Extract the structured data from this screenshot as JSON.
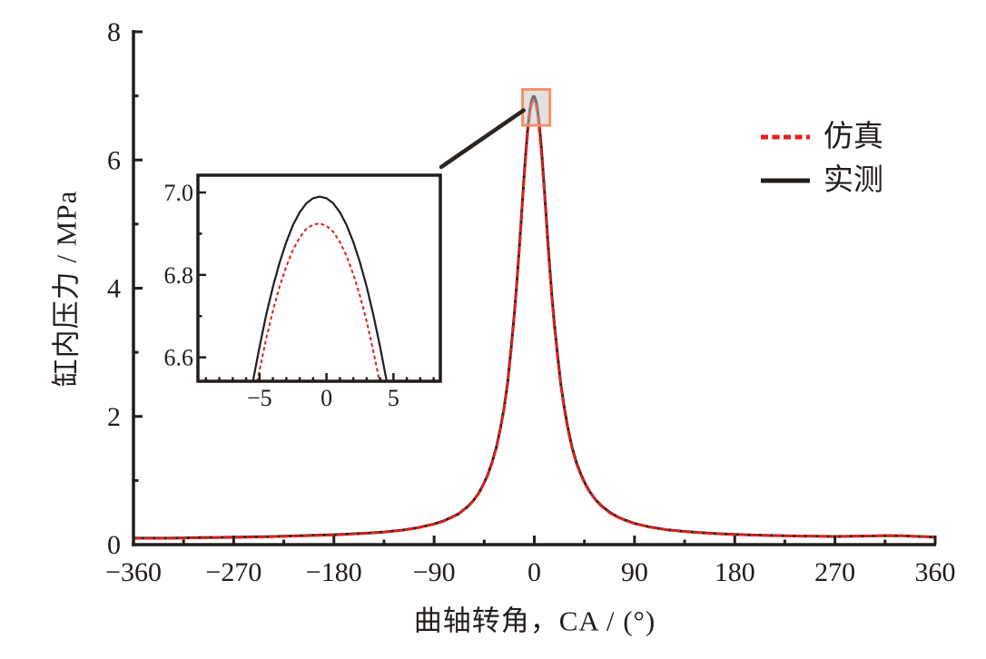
{
  "colors": {
    "axis": "#221c1a",
    "measured": "#221c1a",
    "simulation": "#e2211a",
    "highlight_stroke": "#f0906c",
    "highlight_fill": "rgba(198,196,192,0.5)",
    "connector": "#2b2522",
    "background": "#ffffff"
  },
  "legend": {
    "items": [
      {
        "label": "仿真",
        "color": "#e2211a",
        "dash": "8 4.5"
      },
      {
        "label": "实测",
        "color": "#221c1a",
        "dash": null
      }
    ]
  },
  "chart_data": {
    "type": "line",
    "title": "",
    "main": {
      "xlabel": "曲轴转角，CA / (°)",
      "ylabel": "缸内压力 / MPa",
      "xlim": [
        -360,
        360
      ],
      "ylim": [
        0,
        8
      ],
      "grid": false,
      "xticks": [
        {
          "v": -360,
          "label": "−360"
        },
        {
          "v": -270,
          "label": "−270"
        },
        {
          "v": -180,
          "label": "−180"
        },
        {
          "v": -90,
          "label": "−90"
        },
        {
          "v": 0,
          "label": "0"
        },
        {
          "v": 90,
          "label": "90"
        },
        {
          "v": 180,
          "label": "180"
        },
        {
          "v": 270,
          "label": "270"
        },
        {
          "v": 360,
          "label": "360"
        }
      ],
      "xminors": [
        -315,
        -225,
        -135,
        -45,
        45,
        135,
        225,
        315
      ],
      "yticks": [
        {
          "v": 0,
          "label": "0"
        },
        {
          "v": 2,
          "label": "2"
        },
        {
          "v": 4,
          "label": "4"
        },
        {
          "v": 6,
          "label": "6"
        },
        {
          "v": 8,
          "label": "8"
        }
      ],
      "yminors": [
        1,
        3,
        5,
        7
      ],
      "highlight_box": {
        "x": [
          -10.5,
          14.0
        ],
        "y": [
          6.54,
          7.1
        ]
      },
      "series": [
        {
          "name": "实测",
          "role": "measured",
          "color": "#221c1a",
          "width": 3,
          "dash": null,
          "points": [
            [
              -360,
              0.1
            ],
            [
              -345,
              0.1
            ],
            [
              -330,
              0.1
            ],
            [
              -315,
              0.105
            ],
            [
              -300,
              0.11
            ],
            [
              -285,
              0.112
            ],
            [
              -270,
              0.115
            ],
            [
              -255,
              0.12
            ],
            [
              -240,
              0.125
            ],
            [
              -225,
              0.13
            ],
            [
              -210,
              0.138
            ],
            [
              -195,
              0.147
            ],
            [
              -180,
              0.155
            ],
            [
              -165,
              0.165
            ],
            [
              -150,
              0.178
            ],
            [
              -135,
              0.197
            ],
            [
              -120,
              0.223
            ],
            [
              -105,
              0.262
            ],
            [
              -90,
              0.322
            ],
            [
              -82,
              0.365
            ],
            [
              -75,
              0.42
            ],
            [
              -68,
              0.48
            ],
            [
              -60,
              0.59
            ],
            [
              -55,
              0.68
            ],
            [
              -50,
              0.8
            ],
            [
              -46,
              0.93
            ],
            [
              -42,
              1.08
            ],
            [
              -38,
              1.28
            ],
            [
              -34,
              1.52
            ],
            [
              -30,
              1.85
            ],
            [
              -27,
              2.15
            ],
            [
              -24,
              2.52
            ],
            [
              -21,
              3.02
            ],
            [
              -18,
              3.58
            ],
            [
              -16,
              4.02
            ],
            [
              -14,
              4.49
            ],
            [
              -12,
              5.0
            ],
            [
              -10,
              5.52
            ],
            [
              -8,
              6.03
            ],
            [
              -6,
              6.45
            ],
            [
              -5,
              6.63
            ],
            [
              -4,
              6.77
            ],
            [
              -3,
              6.88
            ],
            [
              -2,
              6.95
            ],
            [
              -1,
              6.99
            ],
            [
              0,
              6.99
            ],
            [
              1,
              6.95
            ],
            [
              2,
              6.88
            ],
            [
              3,
              6.77
            ],
            [
              4,
              6.63
            ],
            [
              5,
              6.45
            ],
            [
              6,
              6.25
            ],
            [
              7,
              6.02
            ],
            [
              8,
              5.79
            ],
            [
              10,
              5.28
            ],
            [
              12,
              4.77
            ],
            [
              14,
              4.28
            ],
            [
              16,
              3.84
            ],
            [
              18,
              3.44
            ],
            [
              21,
              2.93
            ],
            [
              24,
              2.48
            ],
            [
              27,
              2.13
            ],
            [
              30,
              1.83
            ],
            [
              34,
              1.51
            ],
            [
              38,
              1.27
            ],
            [
              42,
              1.09
            ],
            [
              46,
              0.94
            ],
            [
              50,
              0.82
            ],
            [
              55,
              0.7
            ],
            [
              60,
              0.61
            ],
            [
              68,
              0.5
            ],
            [
              75,
              0.43
            ],
            [
              82,
              0.38
            ],
            [
              90,
              0.33
            ],
            [
              105,
              0.27
            ],
            [
              120,
              0.23
            ],
            [
              135,
              0.205
            ],
            [
              150,
              0.185
            ],
            [
              165,
              0.17
            ],
            [
              180,
              0.158
            ],
            [
              195,
              0.15
            ],
            [
              210,
              0.143
            ],
            [
              225,
              0.138
            ],
            [
              240,
              0.133
            ],
            [
              255,
              0.13
            ],
            [
              270,
              0.128
            ],
            [
              285,
              0.13
            ],
            [
              300,
              0.135
            ],
            [
              315,
              0.14
            ],
            [
              330,
              0.138
            ],
            [
              345,
              0.128
            ],
            [
              360,
              0.118
            ]
          ]
        },
        {
          "name": "仿真",
          "role": "simulation",
          "color": "#e2211a",
          "width": 2.6,
          "dash": "8 4.5",
          "points": [
            [
              -360,
              0.095
            ],
            [
              -330,
              0.097
            ],
            [
              -300,
              0.105
            ],
            [
              -270,
              0.11
            ],
            [
              -240,
              0.12
            ],
            [
              -210,
              0.133
            ],
            [
              -180,
              0.15
            ],
            [
              -165,
              0.162
            ],
            [
              -150,
              0.175
            ],
            [
              -135,
              0.193
            ],
            [
              -120,
              0.22
            ],
            [
              -105,
              0.258
            ],
            [
              -90,
              0.317
            ],
            [
              -82,
              0.36
            ],
            [
              -75,
              0.415
            ],
            [
              -68,
              0.475
            ],
            [
              -60,
              0.585
            ],
            [
              -55,
              0.675
            ],
            [
              -50,
              0.795
            ],
            [
              -46,
              0.925
            ],
            [
              -42,
              1.075
            ],
            [
              -38,
              1.27
            ],
            [
              -34,
              1.51
            ],
            [
              -30,
              1.83
            ],
            [
              -27,
              2.13
            ],
            [
              -24,
              2.5
            ],
            [
              -21,
              2.99
            ],
            [
              -18,
              3.55
            ],
            [
              -16,
              3.99
            ],
            [
              -14,
              4.45
            ],
            [
              -12,
              4.96
            ],
            [
              -10,
              5.47
            ],
            [
              -8,
              5.97
            ],
            [
              -6,
              6.39
            ],
            [
              -5,
              6.57
            ],
            [
              -4,
              6.71
            ],
            [
              -3,
              6.82
            ],
            [
              -2,
              6.89
            ],
            [
              -1,
              6.92
            ],
            [
              0,
              6.925
            ],
            [
              1,
              6.89
            ],
            [
              2,
              6.81
            ],
            [
              3,
              6.7
            ],
            [
              4,
              6.55
            ],
            [
              5,
              6.37
            ],
            [
              6,
              6.17
            ],
            [
              7,
              5.95
            ],
            [
              8,
              5.72
            ],
            [
              10,
              5.22
            ],
            [
              12,
              4.71
            ],
            [
              14,
              4.23
            ],
            [
              16,
              3.79
            ],
            [
              18,
              3.4
            ],
            [
              21,
              2.89
            ],
            [
              24,
              2.45
            ],
            [
              27,
              2.1
            ],
            [
              30,
              1.8
            ],
            [
              34,
              1.49
            ],
            [
              38,
              1.25
            ],
            [
              42,
              1.07
            ],
            [
              46,
              0.925
            ],
            [
              50,
              0.81
            ],
            [
              55,
              0.695
            ],
            [
              60,
              0.6
            ],
            [
              68,
              0.49
            ],
            [
              75,
              0.425
            ],
            [
              82,
              0.375
            ],
            [
              90,
              0.327
            ],
            [
              105,
              0.268
            ],
            [
              120,
              0.228
            ],
            [
              135,
              0.203
            ],
            [
              150,
              0.183
            ],
            [
              165,
              0.168
            ],
            [
              180,
              0.157
            ],
            [
              195,
              0.149
            ],
            [
              210,
              0.142
            ],
            [
              225,
              0.137
            ],
            [
              240,
              0.133
            ],
            [
              255,
              0.13
            ],
            [
              270,
              0.128
            ],
            [
              285,
              0.131
            ],
            [
              300,
              0.136
            ],
            [
              315,
              0.141
            ],
            [
              330,
              0.139
            ],
            [
              345,
              0.129
            ],
            [
              360,
              0.119
            ]
          ]
        }
      ]
    },
    "inset": {
      "xlim": [
        -9.6,
        8.5
      ],
      "ylim": [
        6.542,
        7.042
      ],
      "xticks": [
        {
          "v": -5,
          "label": "−5"
        },
        {
          "v": 0,
          "label": "0"
        },
        {
          "v": 5,
          "label": "5"
        }
      ],
      "xminors": [
        -9,
        -8,
        -7,
        -6,
        -4,
        -3,
        -2,
        -1,
        1,
        2,
        3,
        4,
        6,
        7,
        8
      ],
      "yticks": [
        {
          "v": 6.6,
          "label": "6.6"
        },
        {
          "v": 6.8,
          "label": "6.8"
        },
        {
          "v": 7.0,
          "label": "7.0"
        }
      ],
      "yminors": [
        6.7,
        6.9
      ],
      "series": [
        {
          "name": "实测",
          "role": "measured",
          "color": "#221c1a",
          "width": 2.2,
          "dash": null,
          "points": [
            [
              -8,
              6.025
            ],
            [
              -7.5,
              6.139
            ],
            [
              -7,
              6.249
            ],
            [
              -6.5,
              6.353
            ],
            [
              -6,
              6.451
            ],
            [
              -5.5,
              6.541
            ],
            [
              -5,
              6.626
            ],
            [
              -4.5,
              6.703
            ],
            [
              -4,
              6.771
            ],
            [
              -3.5,
              6.83
            ],
            [
              -3,
              6.88
            ],
            [
              -2.5,
              6.921
            ],
            [
              -2,
              6.952
            ],
            [
              -1.5,
              6.974
            ],
            [
              -1,
              6.986
            ],
            [
              -0.5,
              6.99
            ],
            [
              0,
              6.986
            ],
            [
              0.5,
              6.974
            ],
            [
              1,
              6.952
            ],
            [
              1.5,
              6.921
            ],
            [
              2,
              6.88
            ],
            [
              2.5,
              6.83
            ],
            [
              3,
              6.771
            ],
            [
              3.5,
              6.703
            ],
            [
              4,
              6.626
            ],
            [
              4.5,
              6.541
            ],
            [
              5,
              6.451
            ],
            [
              5.5,
              6.353
            ],
            [
              6,
              6.249
            ],
            [
              6.5,
              6.139
            ],
            [
              7,
              6.025
            ],
            [
              7.5,
              5.907
            ]
          ]
        },
        {
          "name": "仿真",
          "role": "simulation",
          "color": "#e2211a",
          "width": 2,
          "dash": "4 3",
          "points": [
            [
              -8,
              5.962
            ],
            [
              -7.5,
              6.077
            ],
            [
              -7,
              6.188
            ],
            [
              -6.5,
              6.293
            ],
            [
              -6,
              6.391
            ],
            [
              -5.5,
              6.486
            ],
            [
              -5,
              6.569
            ],
            [
              -4.5,
              6.645
            ],
            [
              -4,
              6.713
            ],
            [
              -3.5,
              6.772
            ],
            [
              -3,
              6.821
            ],
            [
              -2.5,
              6.861
            ],
            [
              -2,
              6.891
            ],
            [
              -1.5,
              6.912
            ],
            [
              -1,
              6.922
            ],
            [
              -0.5,
              6.925
            ],
            [
              0,
              6.919
            ],
            [
              0.5,
              6.905
            ],
            [
              1,
              6.88
            ],
            [
              1.5,
              6.846
            ],
            [
              2,
              6.802
            ],
            [
              2.5,
              6.749
            ],
            [
              3,
              6.687
            ],
            [
              3.5,
              6.615
            ],
            [
              4,
              6.536
            ],
            [
              4.5,
              6.448
            ],
            [
              5,
              6.353
            ],
            [
              5.5,
              6.252
            ],
            [
              6,
              6.145
            ],
            [
              6.5,
              6.032
            ],
            [
              7,
              5.913
            ]
          ]
        }
      ]
    }
  }
}
